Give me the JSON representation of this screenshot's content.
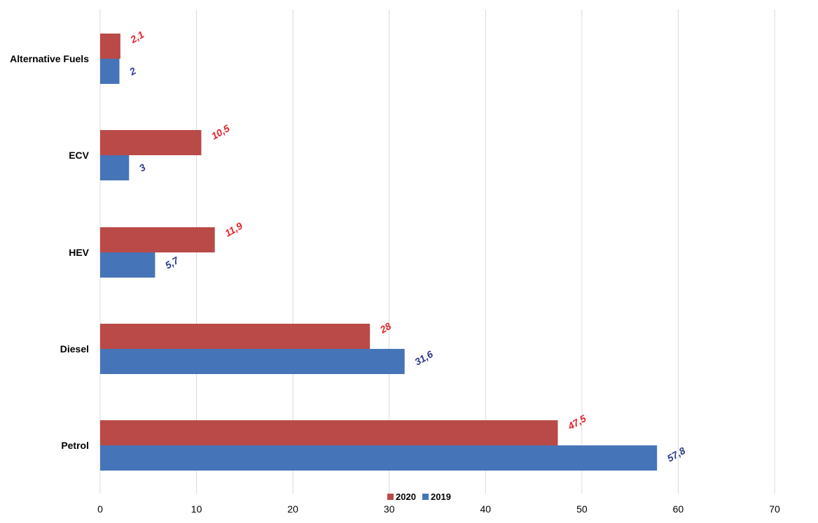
{
  "chart_data": {
    "type": "bar",
    "orientation": "horizontal",
    "categories": [
      "Alternative Fuels",
      "ECV",
      "HEV",
      "Diesel",
      "Petrol"
    ],
    "series": [
      {
        "name": "2020",
        "values": [
          2.1,
          10.5,
          11.9,
          28,
          47.5
        ],
        "labels": [
          "2,1",
          "10,5",
          "11,9",
          "28",
          "47,5"
        ],
        "color": "#b94a48",
        "label_color": "#e8202a"
      },
      {
        "name": "2019",
        "values": [
          2,
          3,
          5.7,
          31.6,
          57.8
        ],
        "labels": [
          "2",
          "3",
          "5,7",
          "31,6",
          "57,8"
        ],
        "color": "#4674b8",
        "label_color": "#2e3a8c"
      }
    ],
    "xlim": [
      0,
      70
    ],
    "x_ticks": [
      "0",
      "10",
      "20",
      "30",
      "40",
      "50",
      "60",
      "70"
    ],
    "x_tick_values": [
      0,
      10,
      20,
      30,
      40,
      50,
      60,
      70
    ],
    "grid": "vertical",
    "grid_color": "#d9d9d9",
    "legend_position": "bottom",
    "legend": [
      "2020",
      "2019"
    ],
    "title": "",
    "xlabel": "",
    "ylabel": ""
  }
}
